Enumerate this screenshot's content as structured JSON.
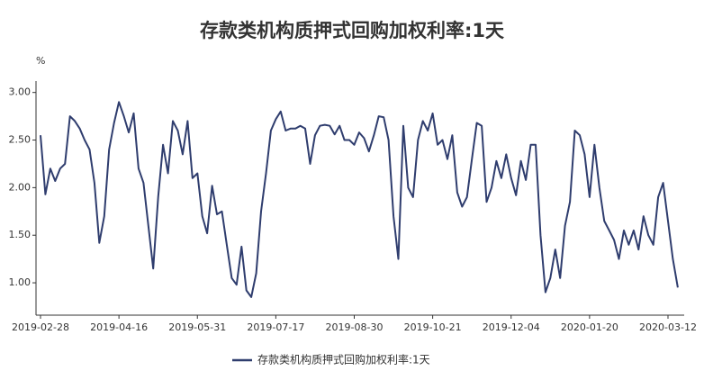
{
  "chart_data": {
    "type": "line",
    "title": "存款类机构质押式回购加权利率:1天",
    "y_label": "%",
    "categories": [
      "2019-02-28",
      null,
      null,
      null,
      null,
      null,
      null,
      null,
      null,
      null,
      null,
      null,
      null,
      null,
      null,
      null,
      "2019-04-16",
      null,
      null,
      null,
      null,
      null,
      null,
      null,
      null,
      null,
      null,
      null,
      null,
      null,
      null,
      null,
      "2019-05-31",
      null,
      null,
      null,
      null,
      null,
      null,
      null,
      null,
      null,
      null,
      null,
      null,
      null,
      null,
      null,
      "2019-07-17",
      null,
      null,
      null,
      null,
      null,
      null,
      null,
      null,
      null,
      null,
      null,
      null,
      null,
      null,
      null,
      "2019-08-30",
      null,
      null,
      null,
      null,
      null,
      null,
      null,
      null,
      null,
      null,
      null,
      null,
      null,
      null,
      null,
      "2019-10-21",
      null,
      null,
      null,
      null,
      null,
      null,
      null,
      null,
      null,
      null,
      null,
      null,
      null,
      null,
      null,
      "2019-12-04",
      null,
      null,
      null,
      null,
      null,
      null,
      null,
      null,
      null,
      null,
      null,
      null,
      null,
      null,
      null,
      "2020-01-20",
      null,
      null,
      null,
      null,
      null,
      null,
      null,
      null,
      null,
      null,
      null,
      null,
      null,
      null,
      null,
      "2020-03-12",
      null,
      null
    ],
    "series": [
      {
        "name": "存款类机构质押式回购加权利率:1天",
        "color": "#2f3d6e",
        "values": [
          2.55,
          1.93,
          2.2,
          2.07,
          2.2,
          2.25,
          2.75,
          2.7,
          2.62,
          2.5,
          2.4,
          2.05,
          1.42,
          1.7,
          2.4,
          2.68,
          2.9,
          2.75,
          2.58,
          2.78,
          2.2,
          2.05,
          1.6,
          1.15,
          1.9,
          2.45,
          2.15,
          2.7,
          2.6,
          2.35,
          2.7,
          2.1,
          2.15,
          1.7,
          1.52,
          2.02,
          1.72,
          1.75,
          1.4,
          1.05,
          0.98,
          1.38,
          0.92,
          0.85,
          1.1,
          1.75,
          2.15,
          2.6,
          2.72,
          2.8,
          2.6,
          2.62,
          2.62,
          2.65,
          2.62,
          2.25,
          2.55,
          2.65,
          2.66,
          2.65,
          2.56,
          2.65,
          2.5,
          2.5,
          2.45,
          2.58,
          2.52,
          2.38,
          2.55,
          2.75,
          2.74,
          2.5,
          1.7,
          1.25,
          2.65,
          2.0,
          1.9,
          2.5,
          2.7,
          2.6,
          2.78,
          2.45,
          2.5,
          2.3,
          2.55,
          1.95,
          1.8,
          1.9,
          2.3,
          2.68,
          2.65,
          1.85,
          2.0,
          2.28,
          2.1,
          2.35,
          2.1,
          1.92,
          2.28,
          2.08,
          2.45,
          2.45,
          1.5,
          0.9,
          1.05,
          1.35,
          1.05,
          1.6,
          1.85,
          2.6,
          2.55,
          2.35,
          1.9,
          2.45,
          2.0,
          1.65,
          1.55,
          1.45,
          1.25,
          1.55,
          1.4,
          1.55,
          1.35,
          1.7,
          1.5,
          1.4,
          1.9,
          2.05,
          1.65,
          1.25,
          0.95
        ]
      }
    ],
    "ylim": [
      0.66,
      3.12
    ],
    "yticks": [
      {
        "value": 1,
        "label": "1.00"
      },
      {
        "value": 1.5,
        "label": "1.50"
      },
      {
        "value": 2,
        "label": "2.00"
      },
      {
        "value": 2.5,
        "label": "2.50"
      },
      {
        "value": 3,
        "label": "3.00"
      }
    ],
    "legend": "bottom"
  }
}
